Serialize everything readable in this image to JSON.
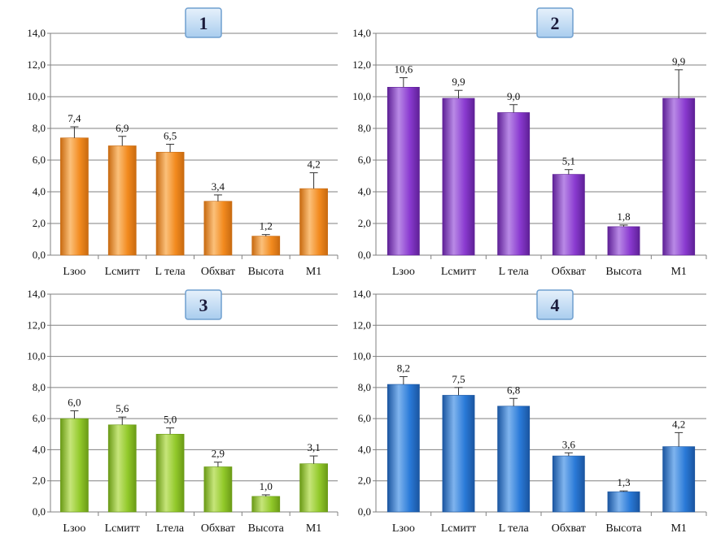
{
  "chart_data": [
    {
      "type": "bar",
      "panel_label": "1",
      "categories": [
        "Lзоо",
        "Lсмитт",
        "L тела",
        "Обхват",
        "Высота",
        "M1"
      ],
      "values": [
        7.4,
        6.9,
        6.5,
        3.4,
        1.2,
        4.2
      ],
      "value_labels": [
        "7,4",
        "6,9",
        "6,5",
        "3,4",
        "1,2",
        "4,2"
      ],
      "error_upper": [
        8.1,
        7.5,
        7.0,
        3.8,
        1.3,
        5.2
      ],
      "color": "#f28a1e",
      "color_light": "#fbc07a",
      "color_dark": "#c86a10",
      "ylim": [
        0,
        14
      ],
      "yticks": [
        "0,0",
        "2,0",
        "4,0",
        "6,0",
        "8,0",
        "10,0",
        "12,0",
        "14,0"
      ]
    },
    {
      "type": "bar",
      "panel_label": "2",
      "categories": [
        "Lзоо",
        "Lсмитт",
        "L тела",
        "Обхват",
        "Высота",
        "M1"
      ],
      "values": [
        10.6,
        9.9,
        9.0,
        5.1,
        1.8,
        9.9
      ],
      "value_labels": [
        "10,6",
        "9,9",
        "9,0",
        "5,1",
        "1,8",
        "9,9"
      ],
      "error_upper": [
        11.2,
        10.4,
        9.5,
        5.4,
        1.9,
        11.7
      ],
      "color": "#8a3ad0",
      "color_light": "#b98ae6",
      "color_dark": "#5e2096",
      "ylim": [
        0,
        14
      ],
      "yticks": [
        "0,0",
        "2,0",
        "4,0",
        "6,0",
        "8,0",
        "10,0",
        "12,0",
        "14,0"
      ]
    },
    {
      "type": "bar",
      "panel_label": "3",
      "categories": [
        "Lзоо",
        "Lсмитт",
        "Lтела",
        "Обхват",
        "Высота",
        "M1"
      ],
      "values": [
        6.0,
        5.6,
        5.0,
        2.9,
        1.0,
        3.1
      ],
      "value_labels": [
        "6,0",
        "5,6",
        "5,0",
        "2,9",
        "1,0",
        "3,1"
      ],
      "error_upper": [
        6.5,
        6.1,
        5.4,
        3.2,
        1.1,
        3.6
      ],
      "color": "#92c92a",
      "color_light": "#c6e57a",
      "color_dark": "#6a9a16",
      "ylim": [
        0,
        14
      ],
      "yticks": [
        "0,0",
        "2,0",
        "4,0",
        "6,0",
        "8,0",
        "10,0",
        "12,0",
        "14,0"
      ]
    },
    {
      "type": "bar",
      "panel_label": "4",
      "categories": [
        "Lзоо",
        "Lсмитт",
        "L тела",
        "Обхват",
        "Высота",
        "M1"
      ],
      "values": [
        8.2,
        7.5,
        6.8,
        3.6,
        1.3,
        4.2
      ],
      "value_labels": [
        "8,2",
        "7,5",
        "6,8",
        "3,6",
        "1,3",
        "4,2"
      ],
      "error_upper": [
        8.7,
        8.0,
        7.3,
        3.8,
        1.35,
        5.1
      ],
      "color": "#2a7ad8",
      "color_light": "#7fb4ee",
      "color_dark": "#1a55a0",
      "ylim": [
        0,
        14
      ],
      "yticks": [
        "0,0",
        "2,0",
        "4,0",
        "6,0",
        "8,0",
        "10,0",
        "12,0",
        "14,0"
      ]
    }
  ]
}
